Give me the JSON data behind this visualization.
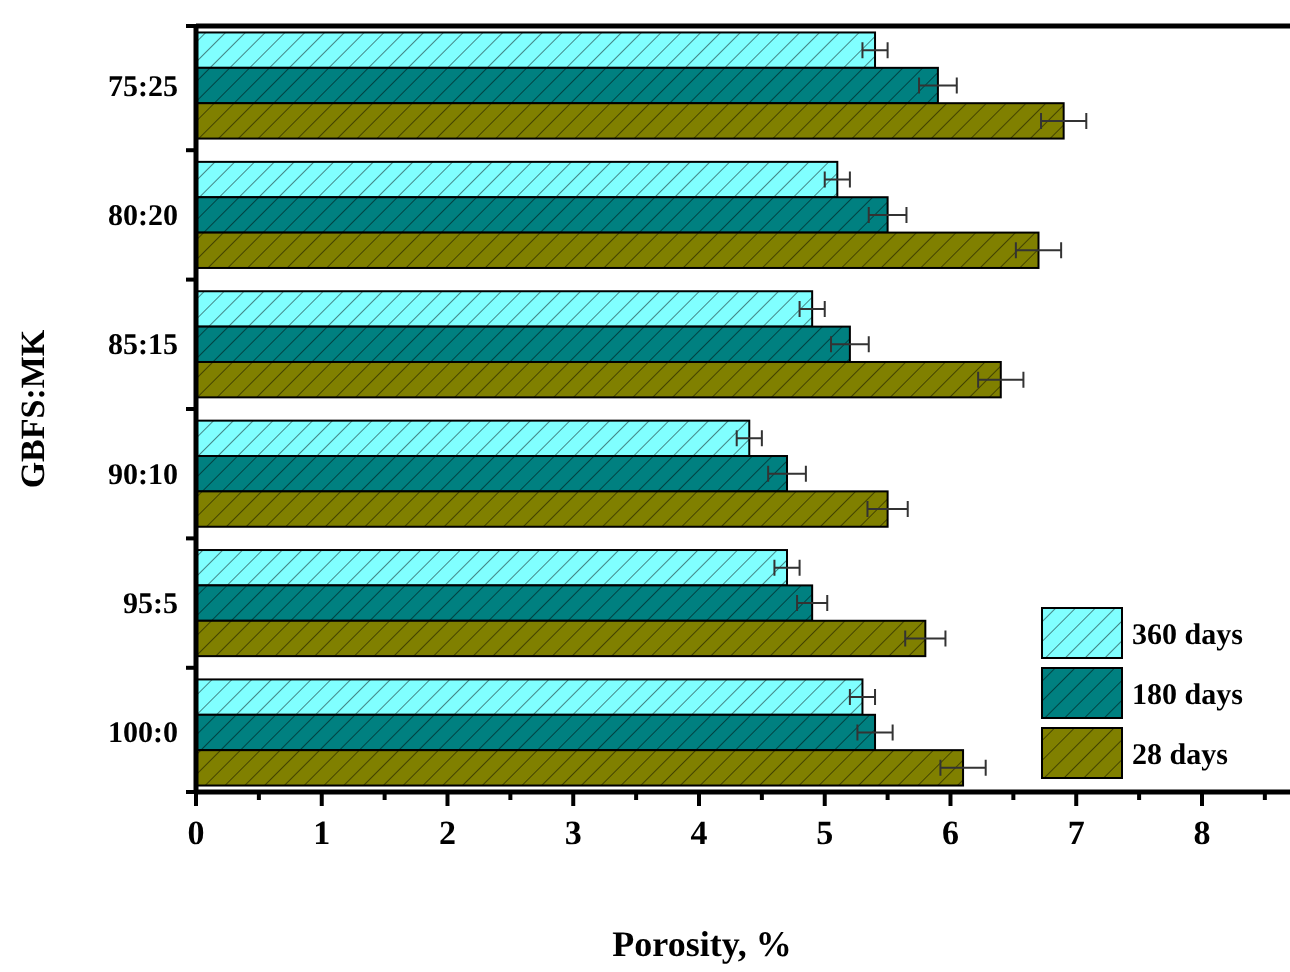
{
  "chart_data": {
    "type": "bar",
    "orientation": "horizontal",
    "xlabel": "Porosity, %",
    "ylabel": "GBFS:MK",
    "categories": [
      "75:25",
      "80:20",
      "85:15",
      "90:10",
      "95:5",
      "100:0"
    ],
    "series": [
      {
        "name": "360 days",
        "color": "#80ffff",
        "values": [
          5.4,
          5.1,
          4.9,
          4.4,
          4.7,
          5.3
        ],
        "errors": [
          0.1,
          0.1,
          0.1,
          0.1,
          0.1,
          0.1
        ]
      },
      {
        "name": "180 days",
        "color": "#008080",
        "values": [
          5.9,
          5.5,
          5.2,
          4.7,
          4.9,
          5.4
        ],
        "errors": [
          0.15,
          0.15,
          0.15,
          0.15,
          0.12,
          0.14
        ]
      },
      {
        "name": "28 days",
        "color": "#808000",
        "values": [
          6.9,
          6.7,
          6.4,
          5.5,
          5.8,
          6.1
        ],
        "errors": [
          0.18,
          0.18,
          0.18,
          0.16,
          0.16,
          0.18
        ]
      }
    ],
    "xlim": [
      0,
      8.7
    ],
    "xticks": [
      0,
      {
        "value": 0.5,
        "label": null
      },
      1,
      {
        "value": 1.5,
        "label": null
      },
      2,
      {
        "value": 2.5,
        "label": null
      },
      3,
      {
        "value": 3.5,
        "label": null
      },
      4,
      {
        "value": 4.5,
        "label": null
      },
      5,
      {
        "value": 5.5,
        "label": null
      },
      6,
      {
        "value": 6.5,
        "label": null
      },
      7,
      {
        "value": 7.5,
        "label": null
      },
      8,
      {
        "value": 8.5,
        "label": null
      }
    ],
    "legend": "bottom right",
    "grid": false
  }
}
